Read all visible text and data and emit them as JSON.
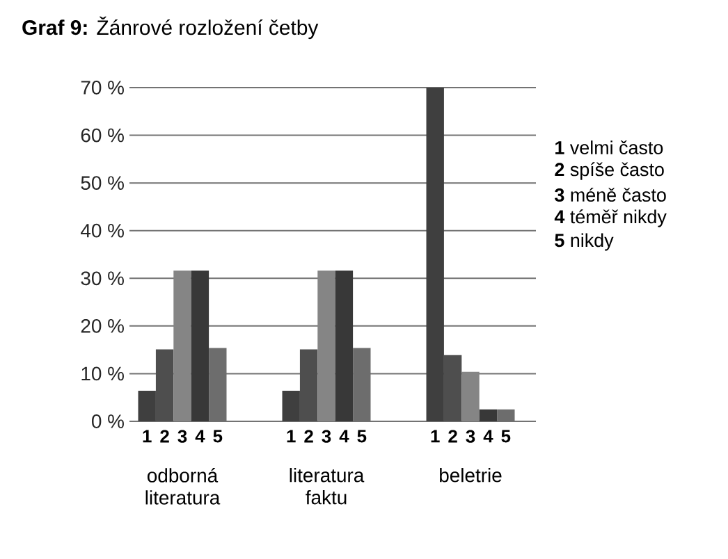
{
  "chart_data": {
    "type": "bar",
    "title": "**Graf 9:** Žánrové rozložení četby",
    "categories": [
      "odborná literatura",
      "literatura faktu",
      "beletrie"
    ],
    "series": [
      {
        "name": "**1** velmi často",
        "color": "#3f3f3f",
        "values": [
          6.4,
          6.4,
          70
        ]
      },
      {
        "name": "**2** spíše často",
        "color": "#4e4e4e",
        "values": [
          15.1,
          15.1,
          13.9
        ]
      },
      {
        "name": "**3** méně často",
        "color": "#858585",
        "values": [
          31.6,
          31.6,
          10.4
        ]
      },
      {
        "name": "**4** téměř nikdy",
        "color": "#383838",
        "values": [
          31.6,
          31.6,
          2.5
        ]
      },
      {
        "name": "**5** nikdy",
        "color": "#6d6d6d",
        "values": [
          15.4,
          15.4,
          2.5
        ]
      }
    ],
    "ylim": [
      0,
      70
    ],
    "yticks": [
      {
        "value": 0,
        "label": "0 %"
      },
      {
        "value": 10,
        "label": "10 %"
      },
      {
        "value": 20,
        "label": "20 %"
      },
      {
        "value": 30,
        "label": "30 %"
      },
      {
        "value": 40,
        "label": "40 %"
      },
      {
        "value": 50,
        "label": "50 %"
      },
      {
        "value": 60,
        "label": "60 %"
      },
      {
        "value": 70,
        "label": "70 %"
      }
    ],
    "grid": "y",
    "legend": "right",
    "annotations": [
      {
        "text": "1",
        "x": "odborná literatura",
        "y": 0
      },
      {
        "text": "2",
        "x": "odborná literatura",
        "y": 0
      },
      {
        "text": "3",
        "x": "odborná literatura",
        "y": 0
      },
      {
        "text": "4",
        "x": "odborná literatura",
        "y": 0
      },
      {
        "text": "5",
        "x": "odborná literatura",
        "y": 0
      },
      {
        "text": "1",
        "x": "literatura faktu",
        "y": 0
      },
      {
        "text": "2",
        "x": "literatura faktu",
        "y": 0
      },
      {
        "text": "3",
        "x": "literatura faktu",
        "y": 0
      },
      {
        "text": "4",
        "x": "literatura faktu",
        "y": 0
      },
      {
        "text": "5",
        "x": "literatura faktu",
        "y": 0
      },
      {
        "text": "1",
        "x": "beletrie",
        "y": 0
      },
      {
        "text": "2",
        "x": "beletrie",
        "y": 0
      },
      {
        "text": "3",
        "x": "beletrie",
        "y": 0
      },
      {
        "text": "4",
        "x": "beletrie",
        "y": 0
      },
      {
        "text": "5",
        "x": "beletrie",
        "y": 0
      }
    ]
  }
}
